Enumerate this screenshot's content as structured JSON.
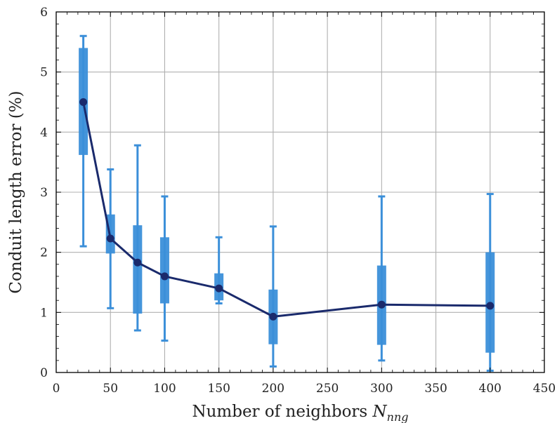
{
  "chart_data": {
    "type": "line",
    "title": "",
    "xlabel": "Number of neighbors N_nng",
    "xlabel_main": "Number of neighbors ",
    "xlabel_symbol": "N",
    "xlabel_subscript": "nng",
    "ylabel": "Conduit length error (%)",
    "xlim": [
      0,
      450
    ],
    "ylim": [
      0,
      6
    ],
    "xticks": [
      0,
      50,
      100,
      150,
      200,
      250,
      300,
      350,
      400,
      450
    ],
    "yticks": [
      0,
      1,
      2,
      3,
      4,
      5,
      6
    ],
    "xtick_labels": [
      "0",
      "50",
      "100",
      "150",
      "200",
      "250",
      "300",
      "350",
      "400",
      "450"
    ],
    "ytick_labels": [
      "0",
      "1",
      "2",
      "3",
      "4",
      "5",
      "6"
    ],
    "grid": true,
    "series": [
      {
        "kind": "line-with-markers",
        "color": "#1a2a6c",
        "x": [
          25,
          50,
          75,
          100,
          150,
          200,
          300,
          400
        ],
        "y": [
          4.5,
          2.23,
          1.83,
          1.6,
          1.4,
          0.93,
          1.13,
          1.11
        ]
      },
      {
        "kind": "box-whisker",
        "color": "#3b8fd9",
        "x": [
          25,
          50,
          75,
          100,
          150,
          200,
          300,
          400
        ],
        "q1": [
          3.62,
          1.98,
          0.98,
          1.15,
          1.2,
          0.47,
          0.46,
          0.33
        ],
        "q3": [
          5.4,
          2.63,
          2.45,
          2.25,
          1.65,
          1.38,
          1.78,
          2.0
        ],
        "whisker_low": [
          2.1,
          1.07,
          0.7,
          0.53,
          1.15,
          0.1,
          0.2,
          0.03
        ],
        "whisker_high": [
          5.6,
          3.38,
          3.78,
          2.93,
          2.25,
          2.43,
          2.93,
          2.97
        ]
      }
    ]
  }
}
